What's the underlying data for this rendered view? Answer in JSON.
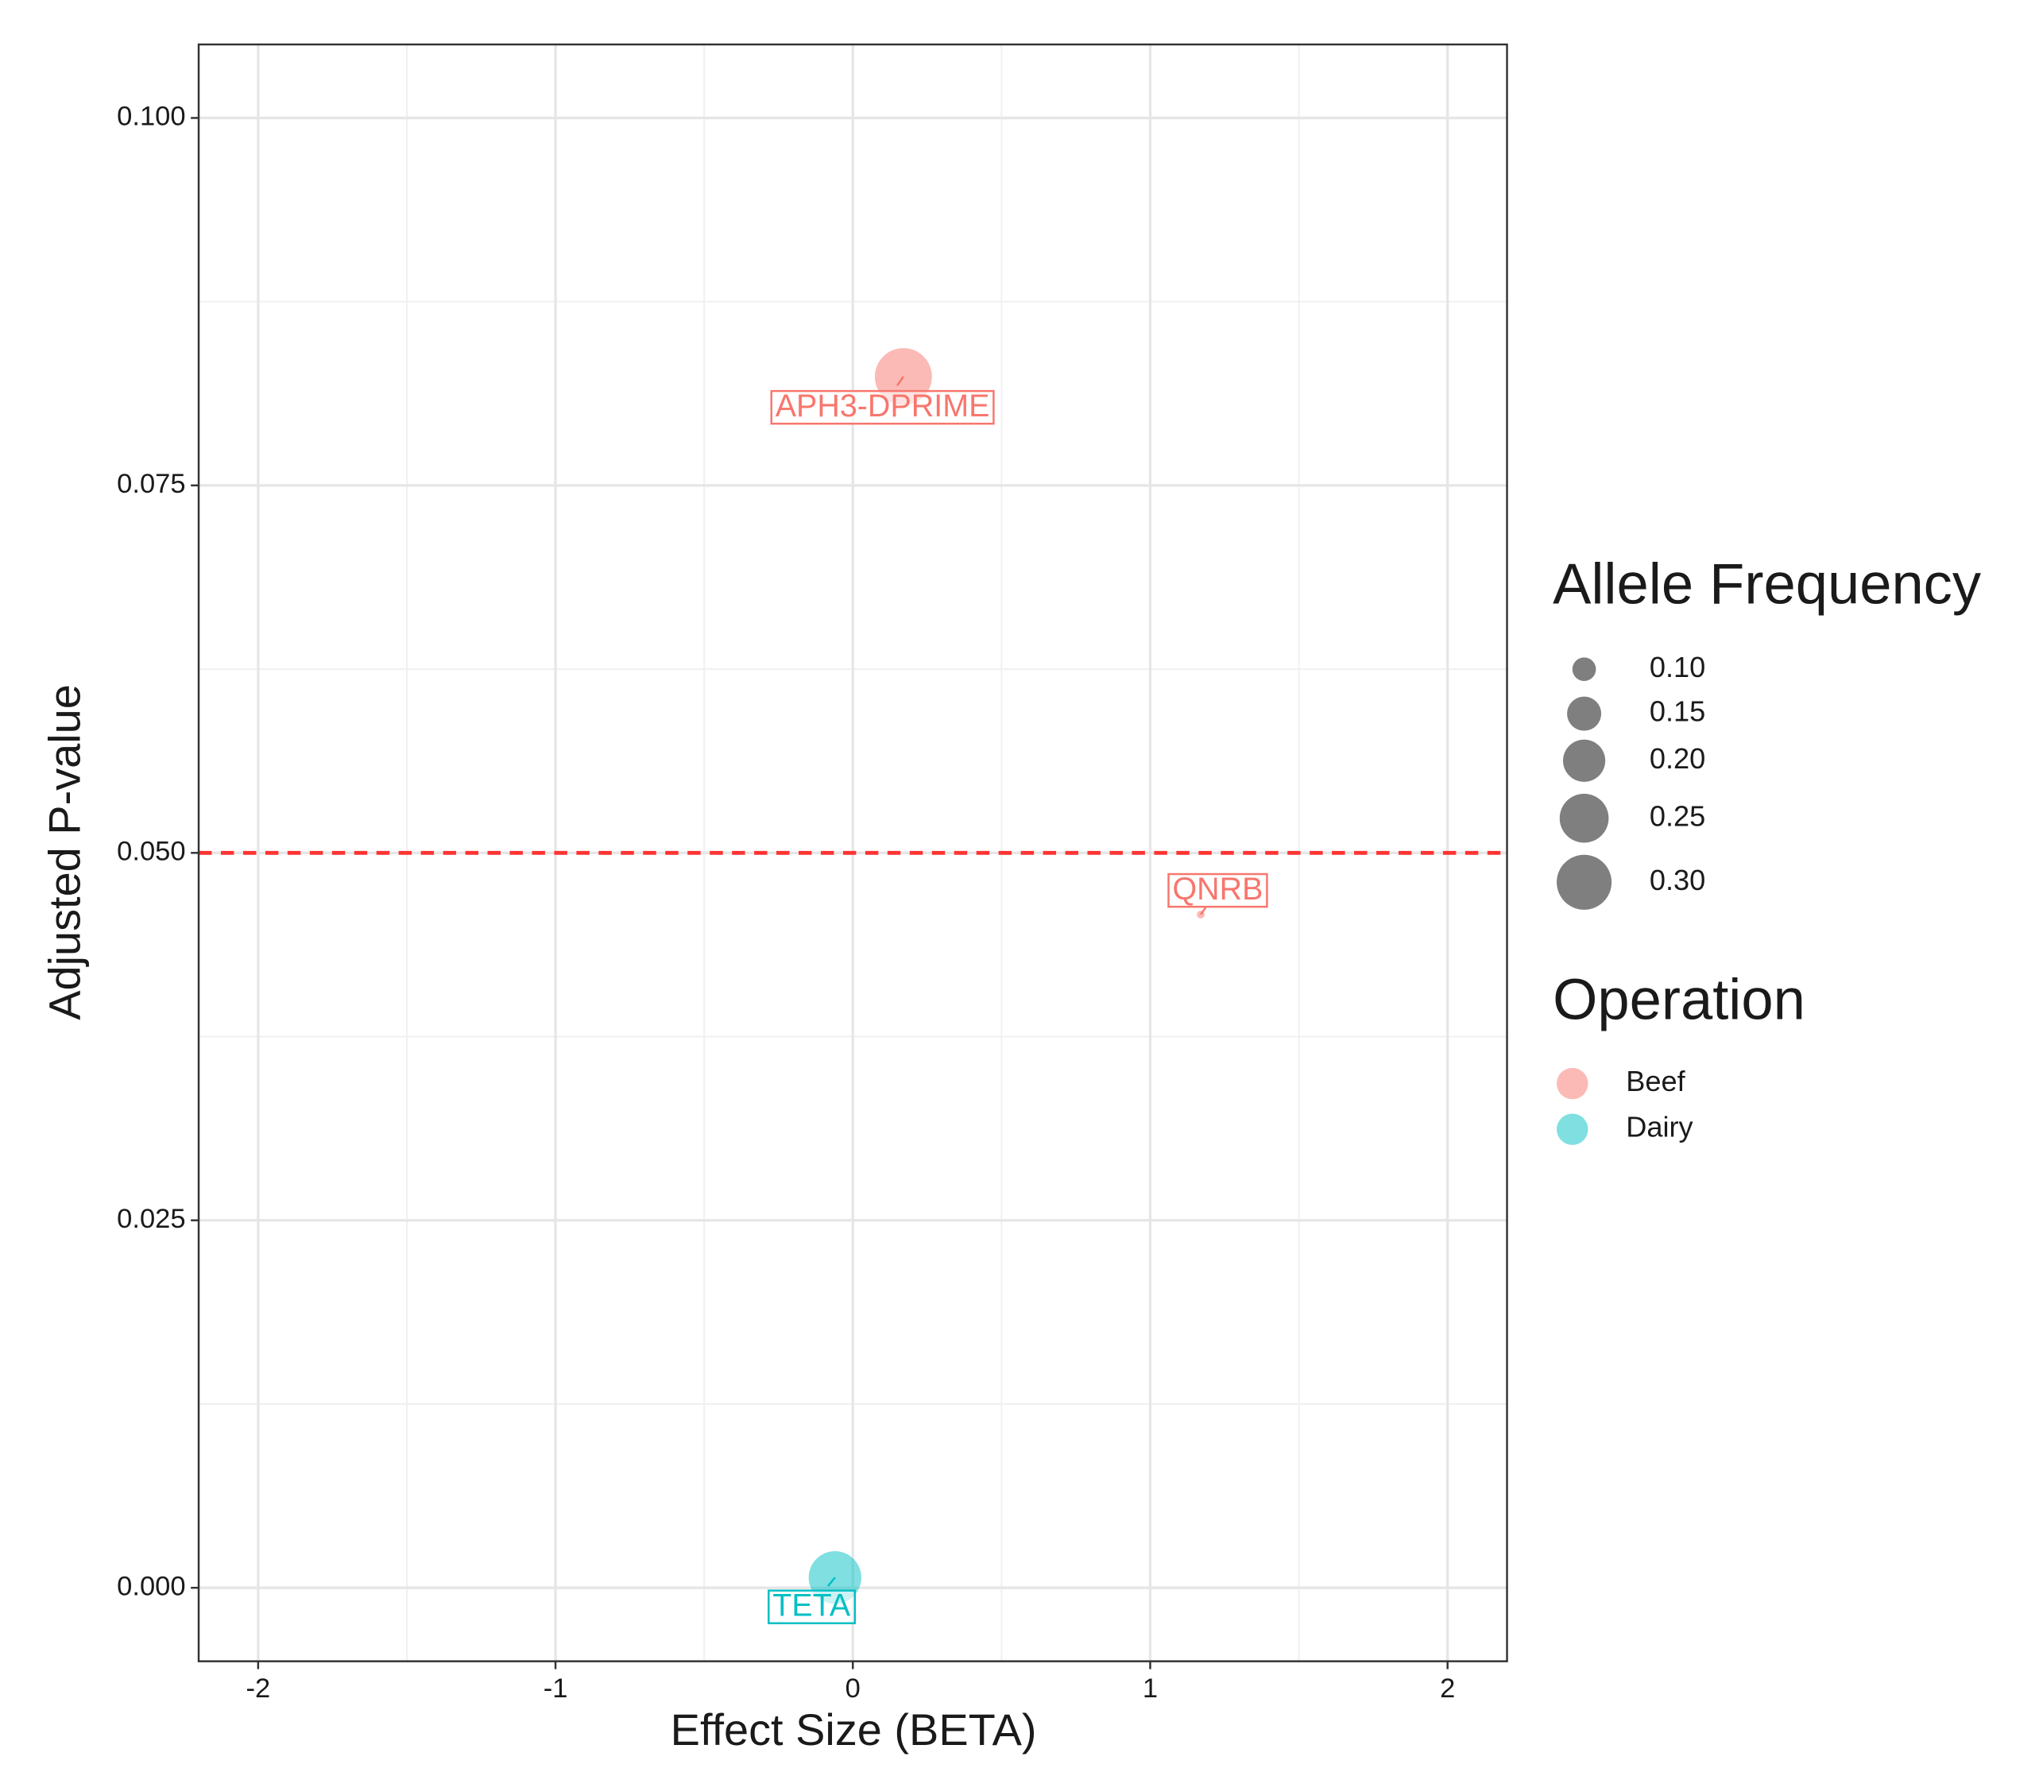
{
  "chart_data": {
    "type": "scatter",
    "xlabel": "Effect Size (BETA)",
    "ylabel": "Adjusted P-value",
    "xlim": [
      -2.2,
      2.2
    ],
    "ylim": [
      -0.005,
      0.105
    ],
    "xticks": [
      -2,
      -1,
      0,
      1,
      2
    ],
    "yticks": [
      {
        "value": 0,
        "label": "0.000"
      },
      {
        "value": 0.025,
        "label": "0.025"
      },
      {
        "value": 0.05,
        "label": "0.050"
      },
      {
        "value": 0.075,
        "label": "0.075"
      },
      {
        "value": 0.1,
        "label": "0.100"
      }
    ],
    "grid": true,
    "hline": {
      "value": 0.05,
      "color": "#ff3333"
    },
    "series": [
      {
        "name": "Beef",
        "color": "#F8766D",
        "x": [
          0.17,
          1.17
        ],
        "values": [
          0.0824,
          0.0458
        ],
        "sizes": [
          0.32,
          0.06
        ],
        "labels": [
          "APH3-DPRIME",
          "QNRB"
        ]
      },
      {
        "name": "Dairy",
        "color": "#00BFC4",
        "x": [
          -0.06
        ],
        "values": [
          0.0007
        ],
        "sizes": [
          0.28
        ],
        "labels": [
          "TETA"
        ]
      }
    ],
    "size_legend": {
      "title": "Allele Frequency",
      "values": [
        {
          "value": 0.1,
          "label": "0.10"
        },
        {
          "value": 0.15,
          "label": "0.15"
        },
        {
          "value": 0.2,
          "label": "0.20"
        },
        {
          "value": 0.25,
          "label": "0.25"
        },
        {
          "value": 0.3,
          "label": "0.30"
        }
      ]
    },
    "color_legend_title": "Operation"
  }
}
